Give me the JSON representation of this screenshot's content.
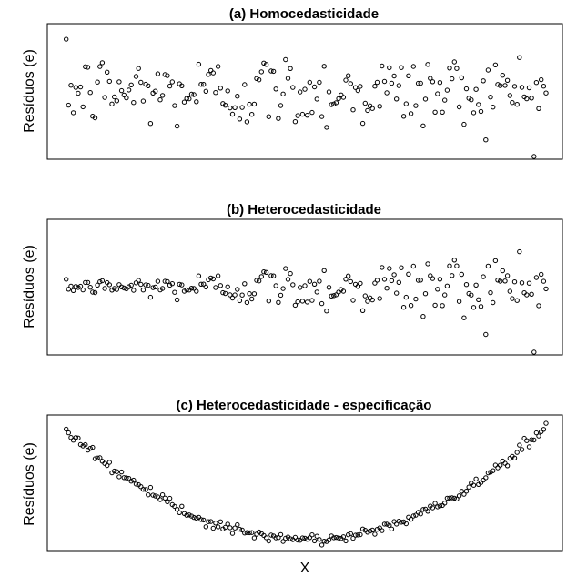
{
  "chart_data": [
    {
      "type": "scatter",
      "title": "(a) Homocedasticidade",
      "ylabel": "Resíduos (e)",
      "xlabel": "",
      "xlim": [
        0,
        200
      ],
      "ylim": [
        -3.6,
        3.6
      ],
      "grid": false,
      "legend": "none",
      "series": [
        {
          "pattern": "homoscedastic",
          "x": [],
          "y": []
        }
      ]
    },
    {
      "type": "scatter",
      "title": "(b) Heterocedasticidade",
      "ylabel": "Resíduos (e)",
      "xlabel": "",
      "xlim": [
        0,
        200
      ],
      "ylim": [
        -3.6,
        3.6
      ],
      "grid": false,
      "legend": "none",
      "series": [
        {
          "pattern": "heteroscedastic",
          "x": [],
          "y": []
        }
      ]
    },
    {
      "type": "scatter",
      "title": "(c) Heterocedasticidade - especificação",
      "ylabel": "Resíduos (e)",
      "xlabel": "X",
      "xlim": [
        0,
        200
      ],
      "ylim": [
        -1.0,
        11.5
      ],
      "grid": false,
      "legend": "none",
      "series": [
        {
          "pattern": "quadratic",
          "x": [],
          "y": []
        }
      ]
    }
  ]
}
